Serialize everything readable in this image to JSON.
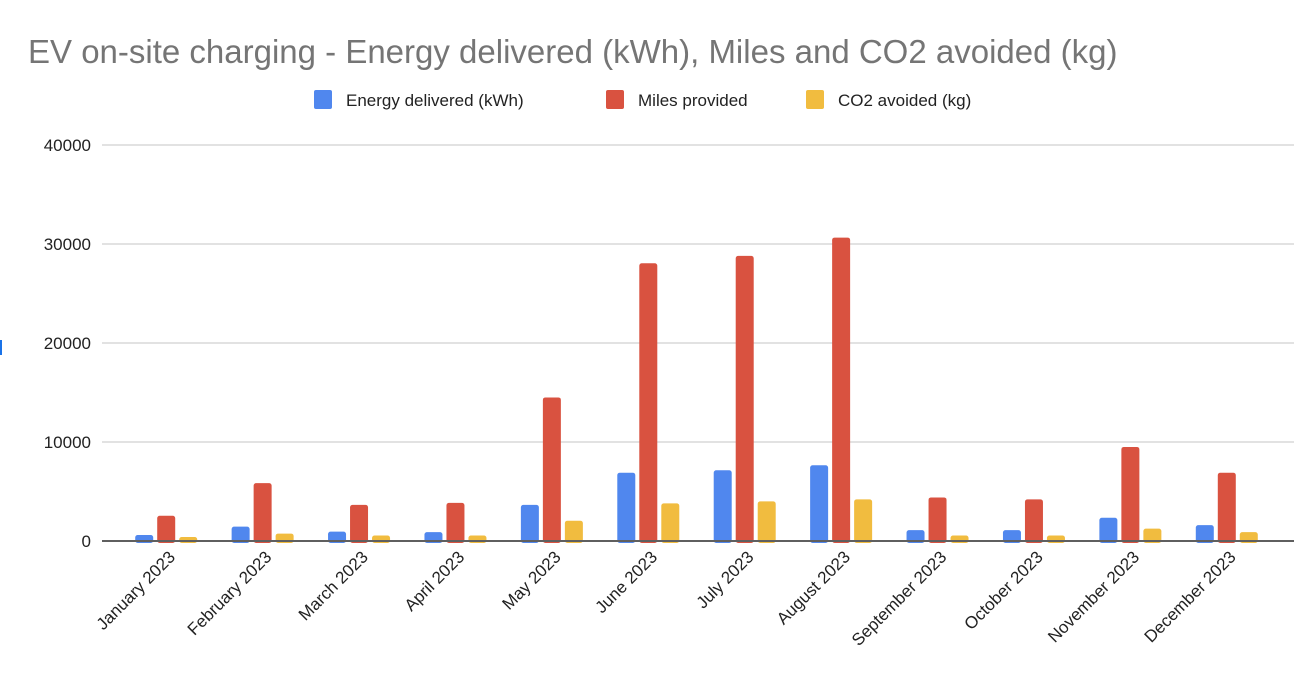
{
  "chart_data": {
    "type": "bar",
    "title": "EV on-site charging - Energy delivered (kWh), Miles and CO2 avoided (kg)",
    "xlabel": "",
    "ylabel": "",
    "ylim": [
      0,
      40000
    ],
    "yticks": [
      0,
      10000,
      20000,
      30000,
      40000
    ],
    "ytick_labels": [
      "0",
      "10000",
      "20000",
      "30000",
      "40000"
    ],
    "grid": true,
    "legend_position": "top-center",
    "categories": [
      "January 2023",
      "February 2023",
      "March 2023",
      "April 2023",
      "May 2023",
      "June 2023",
      "July 2023",
      "August 2023",
      "September 2023",
      "October 2023",
      "November 2023",
      "December 2023"
    ],
    "series": [
      {
        "name": "Energy delivered (kWh)",
        "color": "#5087ee",
        "values": [
          600,
          1450,
          950,
          900,
          3650,
          6900,
          7150,
          7650,
          1100,
          1100,
          2350,
          1600
        ]
      },
      {
        "name": "Miles provided",
        "color": "#d95240",
        "values": [
          2550,
          5850,
          3650,
          3850,
          14500,
          28050,
          28800,
          30650,
          4400,
          4200,
          9500,
          6900
        ]
      },
      {
        "name": "CO2 avoided (kg)",
        "color": "#f1bc3f",
        "values": [
          400,
          750,
          550,
          550,
          2050,
          3800,
          4000,
          4200,
          550,
          550,
          1250,
          900
        ]
      }
    ]
  }
}
